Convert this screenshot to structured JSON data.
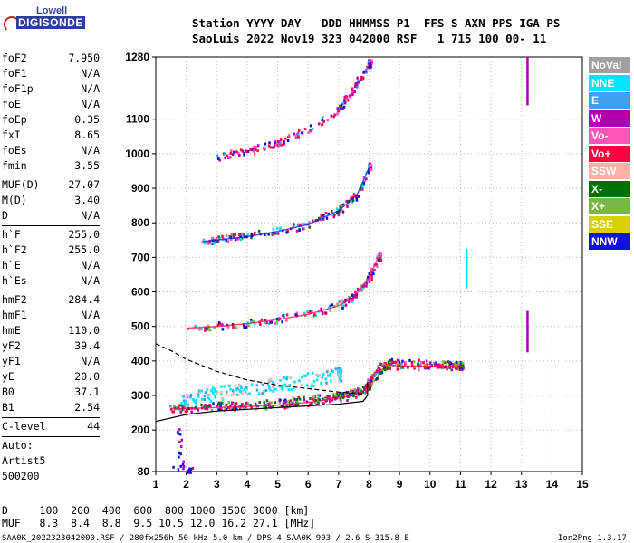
{
  "logo": {
    "line1": "Lowell",
    "line2": "DIGISONDE"
  },
  "header": {
    "row1": "Station YYYY DAY   DDD HHMMSS P1  FFS S AXN PPS IGA PS",
    "row2": "SaoLuis 2022 Nov19 323 042000 RSF   1 715 100 00- 11"
  },
  "params": [
    {
      "name": "foF2",
      "value": "7.950"
    },
    {
      "name": "foF1",
      "value": "N/A"
    },
    {
      "name": "foF1p",
      "value": "N/A"
    },
    {
      "name": "foE",
      "value": "N/A"
    },
    {
      "name": "foEp",
      "value": "0.35"
    },
    {
      "name": "fxI",
      "value": "8.65"
    },
    {
      "name": "foEs",
      "value": "N/A"
    },
    {
      "name": "fmin",
      "value": "3.55"
    },
    {
      "sep": true
    },
    {
      "name": "MUF(D)",
      "value": "27.07"
    },
    {
      "name": "M(D)",
      "value": "3.40"
    },
    {
      "name": "D",
      "value": "N/A"
    },
    {
      "sep": true
    },
    {
      "name": "h`F",
      "value": "255.0"
    },
    {
      "name": "h`F2",
      "value": "255.0"
    },
    {
      "name": "h`E",
      "value": "N/A"
    },
    {
      "name": "h`Es",
      "value": "N/A"
    },
    {
      "sep": true
    },
    {
      "name": "hmF2",
      "value": "284.4"
    },
    {
      "name": "hmF1",
      "value": "N/A"
    },
    {
      "name": "hmE",
      "value": "110.0"
    },
    {
      "name": "yF2",
      "value": "39.4"
    },
    {
      "name": "yF1",
      "value": "N/A"
    },
    {
      "name": "yE",
      "value": "20.0"
    },
    {
      "name": "B0",
      "value": "37.1"
    },
    {
      "name": "B1",
      "value": "2.54"
    },
    {
      "sep": true
    },
    {
      "name": "C-level",
      "value": "44"
    },
    {
      "sep": true
    }
  ],
  "auto": [
    "Auto:",
    "Artist5",
    "500200"
  ],
  "footer": {
    "d_row": "D     100  200  400  600  800 1000 1500 3000 [km]",
    "muf_row": "MUF   8.3  8.4  8.8  9.5 10.5 12.0 16.2 27.1 [MHz]",
    "file_info": "SAA0K_2022323042000.RSF / 280fx256h 50 kHz 5.0 km / DPS-4 SAA0K 903 / 2.6 S 315.8 E",
    "version": "Ion2Png 1.3.17"
  },
  "legend": [
    {
      "label": "NoVal",
      "color": "#a0a0a0"
    },
    {
      "label": "NNE",
      "color": "#00e4ff"
    },
    {
      "label": "E",
      "color": "#3aa0f0"
    },
    {
      "label": "W",
      "color": "#b000b0"
    },
    {
      "label": "Vo-",
      "color": "#ff55b8"
    },
    {
      "label": "Vo+",
      "color": "#ff0040"
    },
    {
      "label": "SSW",
      "color": "#ffb0a8"
    },
    {
      "label": "X-",
      "color": "#007000"
    },
    {
      "label": "X+",
      "color": "#78b848"
    },
    {
      "label": "SSE",
      "color": "#d8d000"
    },
    {
      "label": "NNW",
      "color": "#1010e0"
    }
  ],
  "chart_data": {
    "type": "scatter",
    "xlim": [
      1,
      15
    ],
    "ylim": [
      80,
      1280
    ],
    "x_ticks": [
      1,
      2,
      3,
      4,
      5,
      6,
      7,
      8,
      9,
      10,
      11,
      12,
      13,
      14,
      15
    ],
    "y_ticks": [
      80,
      200,
      300,
      400,
      500,
      600,
      700,
      800,
      900,
      1000,
      1100,
      1280
    ],
    "grid": true,
    "traces": [
      {
        "name": "O-trace 1-hop",
        "points": [
          [
            1.5,
            262
          ],
          [
            2,
            262
          ],
          [
            3,
            265
          ],
          [
            4,
            268
          ],
          [
            5,
            272
          ],
          [
            6,
            280
          ],
          [
            7,
            292
          ],
          [
            7.5,
            300
          ],
          [
            7.9,
            318
          ],
          [
            8.0,
            340
          ],
          [
            8.3,
            380
          ],
          [
            8.6,
            390
          ],
          [
            9,
            385
          ],
          [
            10,
            385
          ],
          [
            11,
            385
          ]
        ]
      },
      {
        "name": "X-trace 1-hop",
        "points": [
          [
            2,
            265
          ],
          [
            3,
            268
          ],
          [
            4,
            272
          ],
          [
            5,
            278
          ],
          [
            6,
            286
          ],
          [
            7,
            298
          ],
          [
            7.6,
            310
          ],
          [
            8,
            330
          ],
          [
            8.6,
            395
          ],
          [
            10,
            390
          ],
          [
            11,
            385
          ]
        ]
      },
      {
        "name": "NNE spread",
        "points": [
          [
            1.8,
            290
          ],
          [
            2.5,
            300
          ],
          [
            3,
            305
          ],
          [
            4,
            320
          ],
          [
            5,
            330
          ],
          [
            6,
            345
          ],
          [
            7,
            360
          ]
        ]
      },
      {
        "name": "2-hop",
        "points": [
          [
            2,
            495
          ],
          [
            3,
            500
          ],
          [
            4,
            508
          ],
          [
            5,
            520
          ],
          [
            6,
            535
          ],
          [
            7,
            560
          ],
          [
            7.5,
            585
          ],
          [
            8,
            640
          ],
          [
            8.3,
            700
          ]
        ]
      },
      {
        "name": "3-hop",
        "points": [
          [
            2.5,
            745
          ],
          [
            3,
            750
          ],
          [
            4,
            760
          ],
          [
            5,
            775
          ],
          [
            6,
            795
          ],
          [
            7,
            835
          ],
          [
            7.6,
            880
          ],
          [
            8,
            960
          ]
        ]
      },
      {
        "name": "4-hop",
        "points": [
          [
            3,
            990
          ],
          [
            4,
            1005
          ],
          [
            5,
            1030
          ],
          [
            6,
            1070
          ],
          [
            7,
            1130
          ],
          [
            7.5,
            1190
          ],
          [
            8,
            1260
          ]
        ]
      },
      {
        "name": "Es low",
        "points": [
          [
            1.6,
            85
          ],
          [
            1.8,
            88
          ],
          [
            2.0,
            86
          ],
          [
            2.2,
            84
          ],
          [
            1.7,
            120
          ],
          [
            1.8,
            150
          ],
          [
            1.7,
            200
          ]
        ]
      }
    ],
    "profile_curve": {
      "points": [
        [
          1,
          225
        ],
        [
          2,
          245
        ],
        [
          3,
          255
        ],
        [
          4,
          260
        ],
        [
          5,
          265
        ],
        [
          6,
          270
        ],
        [
          7,
          275
        ],
        [
          7.8,
          283
        ],
        [
          7.95,
          300
        ],
        [
          7.95,
          340
        ]
      ]
    },
    "dashed_curve": {
      "points": [
        [
          1,
          450
        ],
        [
          1.5,
          430
        ],
        [
          2,
          405
        ],
        [
          3,
          370
        ],
        [
          4,
          345
        ],
        [
          5,
          330
        ],
        [
          6,
          320
        ],
        [
          7,
          310
        ],
        [
          7.8,
          305
        ]
      ]
    },
    "vlines": [
      {
        "x": 13.2,
        "y0": 1140,
        "y1": 1280,
        "color": "#b000b0"
      },
      {
        "x": 13.2,
        "y0": 425,
        "y1": 545,
        "color": "#b000b0"
      },
      {
        "x": 11.2,
        "y0": 610,
        "y1": 725,
        "color": "#00e4ff"
      }
    ]
  }
}
